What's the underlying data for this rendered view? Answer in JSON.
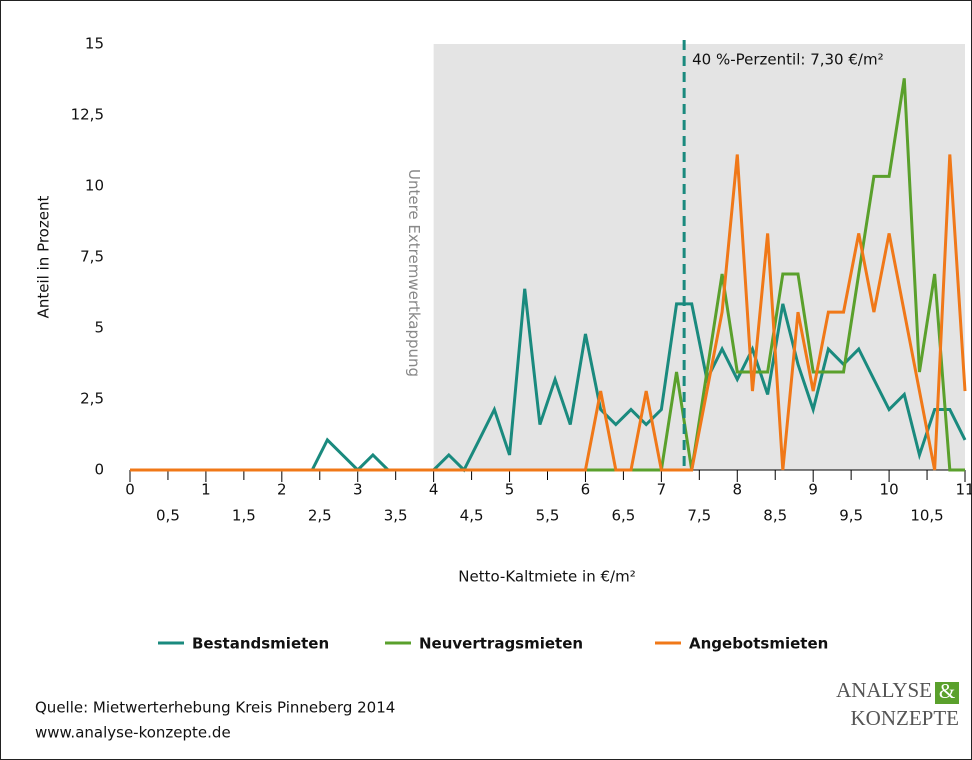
{
  "chart_data": {
    "type": "line",
    "x_label": "Netto-Kaltmiete in €/m²",
    "y_label": "Anteil in Prozent",
    "x": [
      0,
      0.2,
      0.4,
      0.6,
      0.8,
      1,
      1.2,
      1.4,
      1.6,
      1.8,
      2,
      2.2,
      2.4,
      2.6,
      2.8,
      3,
      3.2,
      3.4,
      3.6,
      3.8,
      4,
      4.2,
      4.4,
      4.6,
      4.8,
      5,
      5.2,
      5.4,
      5.6,
      5.8,
      6,
      6.2,
      6.4,
      6.6,
      6.8,
      7,
      7.2,
      7.4,
      7.6,
      7.8,
      8,
      8.2,
      8.4,
      8.6,
      8.8,
      9,
      9.2,
      9.4,
      9.6,
      9.8,
      10,
      10.2,
      10.4,
      10.6,
      10.8,
      11
    ],
    "series": [
      {
        "name": "Bestandsmieten",
        "color": "#1a8a7e",
        "values": [
          0,
          0,
          0,
          0,
          0,
          0,
          0,
          0,
          0,
          0,
          0,
          0,
          0,
          1.06,
          0.53,
          0,
          0.53,
          0,
          0,
          0,
          0,
          0.53,
          0,
          1.06,
          2.13,
          0.53,
          6.38,
          1.6,
          3.19,
          1.6,
          4.79,
          2.13,
          1.6,
          2.13,
          1.6,
          2.13,
          5.85,
          5.85,
          3.19,
          4.26,
          3.19,
          4.26,
          2.66,
          5.85,
          3.72,
          2.13,
          4.26,
          3.72,
          4.26,
          3.19,
          2.13,
          2.66,
          0.53,
          2.13,
          2.13,
          1.06
        ]
      },
      {
        "name": "Neuvertragsmieten",
        "color": "#5aa02c",
        "values": [
          0,
          0,
          0,
          0,
          0,
          0,
          0,
          0,
          0,
          0,
          0,
          0,
          0,
          0,
          0,
          0,
          0,
          0,
          0,
          0,
          0,
          0,
          0,
          0,
          0,
          0,
          0,
          0,
          0,
          0,
          0,
          0,
          0,
          0,
          0,
          0,
          3.45,
          0,
          3.45,
          6.9,
          3.45,
          3.45,
          3.45,
          6.9,
          6.9,
          3.45,
          3.45,
          3.45,
          6.9,
          10.34,
          10.34,
          13.79,
          3.45,
          6.9,
          0,
          0
        ]
      },
      {
        "name": "Angebotsmieten",
        "color": "#f07818",
        "values": [
          0,
          0,
          0,
          0,
          0,
          0,
          0,
          0,
          0,
          0,
          0,
          0,
          0,
          0,
          0,
          0,
          0,
          0,
          0,
          0,
          0,
          0,
          0,
          0,
          0,
          0,
          0,
          0,
          0,
          0,
          0,
          2.78,
          0,
          0,
          2.78,
          0,
          0,
          0,
          2.78,
          5.56,
          11.11,
          2.78,
          8.33,
          0,
          5.56,
          2.78,
          5.56,
          5.56,
          8.33,
          5.56,
          8.33,
          5.56,
          2.78,
          0,
          11.11,
          2.78
        ]
      }
    ],
    "xlim": [
      0,
      11
    ],
    "ylim": [
      0,
      15
    ],
    "xticks": [
      0,
      {
        "value": 0.5,
        "label": "0,5"
      },
      1,
      {
        "value": 1.5,
        "label": "1,5"
      },
      2,
      {
        "value": 2.5,
        "label": "2,5"
      },
      3,
      {
        "value": 3.5,
        "label": "3,5"
      },
      4,
      {
        "value": 4.5,
        "label": "4,5"
      },
      5,
      {
        "value": 5.5,
        "label": "5,5"
      },
      6,
      {
        "value": 6.5,
        "label": "6,5"
      },
      7,
      {
        "value": 7.5,
        "label": "7,5"
      },
      8,
      {
        "value": 8.5,
        "label": "8,5"
      },
      9,
      {
        "value": 9.5,
        "label": "9,5"
      },
      10,
      {
        "value": 10.5,
        "label": "10,5"
      },
      11
    ],
    "yticks": [
      0,
      {
        "value": 2.5,
        "label": "2,5"
      },
      5,
      {
        "value": 7.5,
        "label": "7,5"
      },
      10,
      {
        "value": 12.5,
        "label": "12,5"
      },
      15
    ],
    "grid": false,
    "shaded_region": {
      "x0": 4,
      "x1": 11,
      "color": "#e4e4e4",
      "text": "Untere Extremwertkappung"
    },
    "percentile_line": {
      "x": 7.3,
      "color": "#1a8a7e",
      "text": "40 %-Perzentil: 7,30 €/m²"
    },
    "legend_position": "bottom"
  },
  "footer": {
    "source": "Quelle: Mietwerterhebung Kreis Pinneberg 2014",
    "url": "www.analyse-konzepte.de"
  },
  "logo": {
    "line1": "ANALYSE",
    "amp": "&",
    "line2": "KONZEPTE"
  }
}
